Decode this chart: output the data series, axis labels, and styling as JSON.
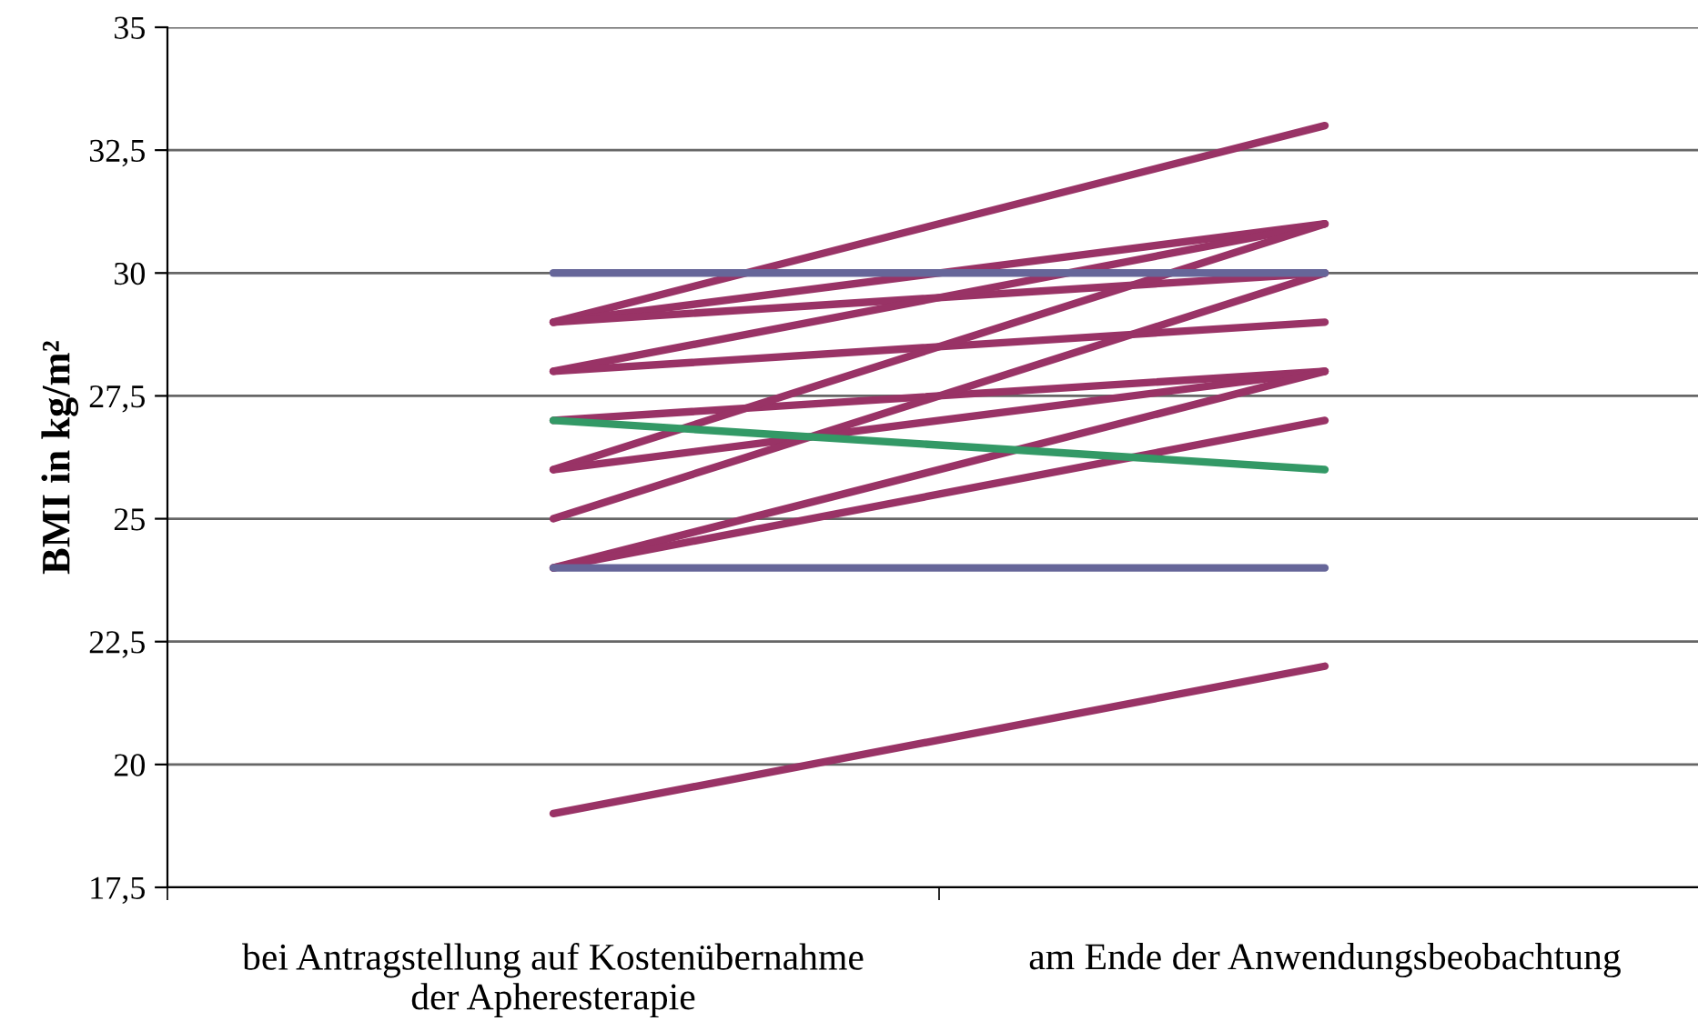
{
  "chart_data": {
    "type": "line",
    "ylabel": "BMI in kg/m²",
    "categories": [
      "bei Antragstellung auf Kostenübernahme\nder Apheresterapie",
      "am Ende der Anwendungsbeobachtung"
    ],
    "series": [
      {
        "color": "#993366",
        "values": [
          29,
          33
        ]
      },
      {
        "color": "#993366",
        "values": [
          29,
          31
        ]
      },
      {
        "color": "#993366",
        "values": [
          29,
          30
        ]
      },
      {
        "color": "#993366",
        "values": [
          28,
          31
        ]
      },
      {
        "color": "#993366",
        "values": [
          28,
          29
        ]
      },
      {
        "color": "#993366",
        "values": [
          27,
          28
        ]
      },
      {
        "color": "#993366",
        "values": [
          26,
          31
        ]
      },
      {
        "color": "#993366",
        "values": [
          26,
          28
        ]
      },
      {
        "color": "#993366",
        "values": [
          25,
          30
        ]
      },
      {
        "color": "#993366",
        "values": [
          24,
          28
        ]
      },
      {
        "color": "#993366",
        "values": [
          24,
          27
        ]
      },
      {
        "color": "#993366",
        "values": [
          19,
          22
        ]
      },
      {
        "color": "#339966",
        "values": [
          27,
          26
        ]
      },
      {
        "color": "#666699",
        "values": [
          30,
          30
        ]
      },
      {
        "color": "#666699",
        "values": [
          24,
          24
        ]
      }
    ],
    "ylim": [
      17.5,
      35
    ],
    "yticks": [
      {
        "value": 17.5,
        "label": "17,5"
      },
      20,
      {
        "value": 22.5,
        "label": "22,5"
      },
      25,
      {
        "value": 27.5,
        "label": "27,5"
      },
      30,
      {
        "value": 32.5,
        "label": "32,5"
      },
      35
    ],
    "grid": "y",
    "marker": "none",
    "line_style": "solid"
  }
}
